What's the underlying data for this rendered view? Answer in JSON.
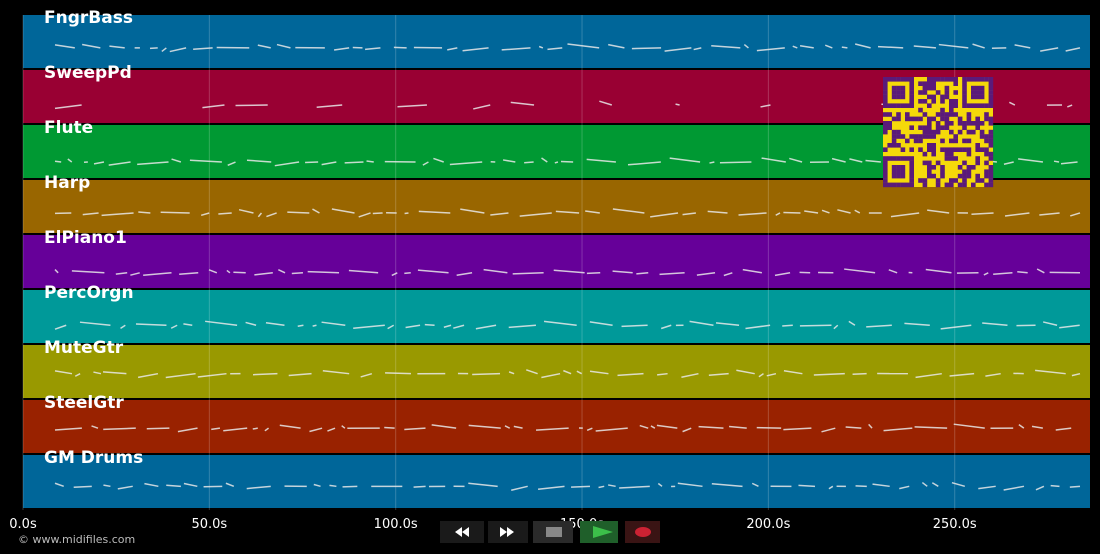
{
  "tracks": [
    {
      "name": "FngrBass",
      "color": "#006699"
    },
    {
      "name": "SweepPd",
      "color": "#990033"
    },
    {
      "name": "Flute",
      "color": "#009933"
    },
    {
      "name": "Harp",
      "color": "#996600"
    },
    {
      "name": "ElPiano1",
      "color": "#660099"
    },
    {
      "name": "PercOrgn",
      "color": "#009999"
    },
    {
      "name": "MuteGtr",
      "color": "#999900"
    },
    {
      "name": "SteelGtr",
      "color": "#992200"
    },
    {
      "name": "GM Drums",
      "color": "#006699"
    }
  ],
  "time_axis": {
    "xlim": [
      0,
      286.3
    ],
    "xticks": [
      {
        "value": 0,
        "label": "0.0s"
      },
      {
        "value": 50,
        "label": "50.0s"
      },
      {
        "value": 100,
        "label": "100.0s"
      },
      {
        "value": 150,
        "label": "150.0s"
      },
      {
        "value": 200,
        "label": "200.0s"
      },
      {
        "value": 250,
        "label": "250.0s"
      }
    ]
  },
  "footer": {
    "copyright": "© www.midifiles.com"
  }
}
